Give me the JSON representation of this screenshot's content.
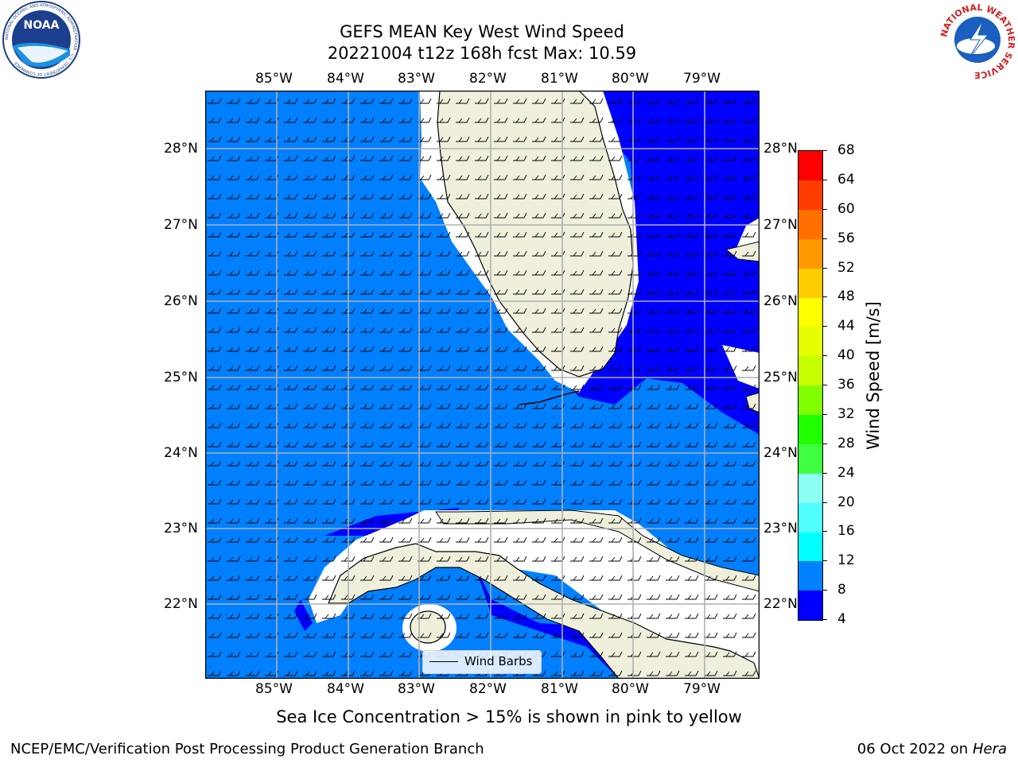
{
  "title": {
    "line1": "GEFS MEAN Key West Wind Speed",
    "line2": "20221004 t12z 168h fcst   Max: 10.59"
  },
  "logos": {
    "left": {
      "name": "NOAA",
      "ring_text": "NATIONAL OCEANIC AND ATMOSPHERIC ADMINISTRATION · U.S. DEPARTMENT OF COMMERCE"
    },
    "right": {
      "ring_text": "NATIONAL WEATHER SERVICE"
    }
  },
  "map": {
    "lon_labels": [
      "85°W",
      "84°W",
      "83°W",
      "82°W",
      "81°W",
      "80°W",
      "79°W"
    ],
    "lat_labels": [
      "28°N",
      "27°N",
      "26°N",
      "25°N",
      "24°N",
      "23°N",
      "22°N"
    ],
    "legend_label": "Wind Barbs",
    "colors": {
      "ocean": "#0080ff",
      "strong": "#0000ff",
      "land": "#efefdc",
      "grid": "#b0b0b0",
      "coast_halo": "#ffffff"
    }
  },
  "colorbar": {
    "label": "Wind Speed [m/s]",
    "ticks": [
      "4",
      "8",
      "12",
      "16",
      "20",
      "24",
      "28",
      "32",
      "36",
      "40",
      "44",
      "48",
      "52",
      "56",
      "60",
      "64",
      "68"
    ],
    "colors": [
      "#0000ff",
      "#0080ff",
      "#00ffff",
      "#50ffff",
      "#8cfff0",
      "#40ff40",
      "#20ff00",
      "#80ff00",
      "#c8ff00",
      "#e6ff00",
      "#ffff00",
      "#ffcc00",
      "#ff9900",
      "#ff7000",
      "#ff3c00",
      "#ff0000"
    ]
  },
  "footer": {
    "left": "NCEP/EMC/Verification Post Processing Product Generation Branch",
    "right_date": "06 Oct 2022 on ",
    "right_host": "Hera",
    "ice_note": "Sea Ice Concentration > 15% is shown in pink to yellow"
  }
}
